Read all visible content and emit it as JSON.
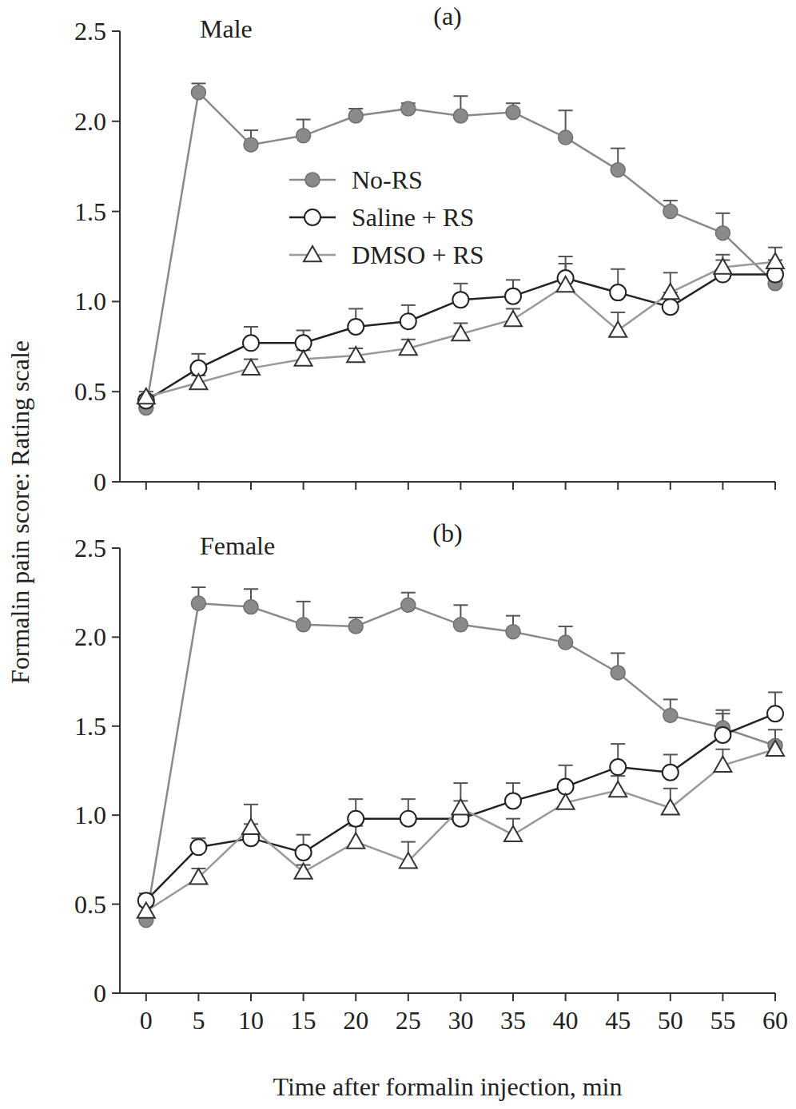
{
  "chart_data": [
    {
      "type": "line",
      "title": "Male",
      "subtitle": "(a)",
      "y_label": "Formalin pain score: Rating scale",
      "x": [
        0,
        5,
        10,
        15,
        20,
        25,
        30,
        35,
        40,
        45,
        50,
        55,
        60
      ],
      "xlim": [
        -2.5,
        60
      ],
      "xticks": [
        0,
        5,
        10,
        15,
        20,
        25,
        30,
        35,
        40,
        45,
        50,
        55,
        60
      ],
      "ylim": [
        0,
        2.5
      ],
      "yticks": [
        0,
        0.5,
        {
          "value": 1,
          "label": "1.0"
        },
        1.5,
        {
          "value": 2,
          "label": "2.0"
        },
        2.5
      ],
      "tick_labels": "y",
      "grid": false,
      "legend": "upper center",
      "series": [
        {
          "name": "No-RS",
          "color": "#8a8a8a",
          "marker": "filled_circle",
          "line_style": "solid",
          "values": [
            0.41,
            2.16,
            1.87,
            1.92,
            2.03,
            2.07,
            2.03,
            2.05,
            1.91,
            1.73,
            1.5,
            1.38,
            1.1
          ],
          "errors": [
            0.02,
            0.05,
            0.08,
            0.09,
            0.04,
            0.03,
            0.11,
            0.05,
            0.15,
            0.12,
            0.06,
            0.11,
            0.04
          ]
        },
        {
          "name": "Saline + RS",
          "color": "#222222",
          "marker": "open_circle",
          "line_style": "solid",
          "values": [
            0.45,
            0.63,
            0.77,
            0.77,
            0.86,
            0.89,
            1.01,
            1.03,
            1.13,
            1.05,
            0.97,
            1.15,
            1.15
          ],
          "errors": [
            0.03,
            0.08,
            0.09,
            0.07,
            0.1,
            0.09,
            0.09,
            0.09,
            0.12,
            0.13,
            0.08,
            0.08,
            0.08
          ]
        },
        {
          "name": "DMSO + RS",
          "color": "#999999",
          "marker": "open_triangle",
          "line_style": "solid",
          "values": [
            0.47,
            0.55,
            0.63,
            0.68,
            0.7,
            0.74,
            0.82,
            0.9,
            1.09,
            0.84,
            1.05,
            1.19,
            1.22
          ],
          "errors": [
            0.03,
            0.04,
            0.05,
            0.05,
            0.04,
            0.05,
            0.06,
            0.06,
            0.12,
            0.1,
            0.11,
            0.07,
            0.08
          ]
        }
      ]
    },
    {
      "type": "line",
      "title": "Female",
      "subtitle": "(b)",
      "x_label": "Time after formalin injection, min",
      "x": [
        0,
        5,
        10,
        15,
        20,
        25,
        30,
        35,
        40,
        45,
        50,
        55,
        60
      ],
      "xlim": [
        -2.5,
        60
      ],
      "xticks": [
        0,
        5,
        10,
        15,
        20,
        25,
        30,
        35,
        40,
        45,
        50,
        55,
        60
      ],
      "ylim": [
        0,
        2.5
      ],
      "yticks": [
        0,
        0.5,
        {
          "value": 1,
          "label": "1.0"
        },
        1.5,
        {
          "value": 2,
          "label": "2.0"
        },
        2.5
      ],
      "tick_labels": true,
      "grid": false,
      "legend": false,
      "series": [
        {
          "name": "No-RS",
          "color": "#8a8a8a",
          "marker": "filled_circle",
          "line_style": "solid",
          "values": [
            0.41,
            2.19,
            2.17,
            2.07,
            2.06,
            2.18,
            2.07,
            2.03,
            1.97,
            1.8,
            1.56,
            1.49,
            1.39
          ],
          "errors": [
            0.02,
            0.09,
            0.1,
            0.13,
            0.05,
            0.07,
            0.11,
            0.09,
            0.09,
            0.11,
            0.09,
            0.1,
            0.09
          ]
        },
        {
          "name": "Saline + RS",
          "color": "#222222",
          "marker": "open_circle",
          "line_style": "solid",
          "values": [
            0.52,
            0.82,
            0.87,
            0.79,
            0.98,
            0.98,
            0.98,
            1.08,
            1.16,
            1.27,
            1.24,
            1.45,
            1.57
          ],
          "errors": [
            0.04,
            0.05,
            0.08,
            0.1,
            0.11,
            0.11,
            0.1,
            0.1,
            0.12,
            0.13,
            0.1,
            0.12,
            0.12
          ]
        },
        {
          "name": "DMSO + RS",
          "color": "#999999",
          "marker": "open_triangle",
          "line_style": "solid",
          "values": [
            0.46,
            0.65,
            0.93,
            0.68,
            0.85,
            0.74,
            1.04,
            0.89,
            1.07,
            1.14,
            1.04,
            1.28,
            1.37
          ],
          "errors": [
            0.03,
            0.05,
            0.13,
            0.04,
            0.09,
            0.11,
            0.14,
            0.09,
            0.09,
            0.08,
            0.11,
            0.09,
            0.04
          ]
        }
      ]
    }
  ]
}
